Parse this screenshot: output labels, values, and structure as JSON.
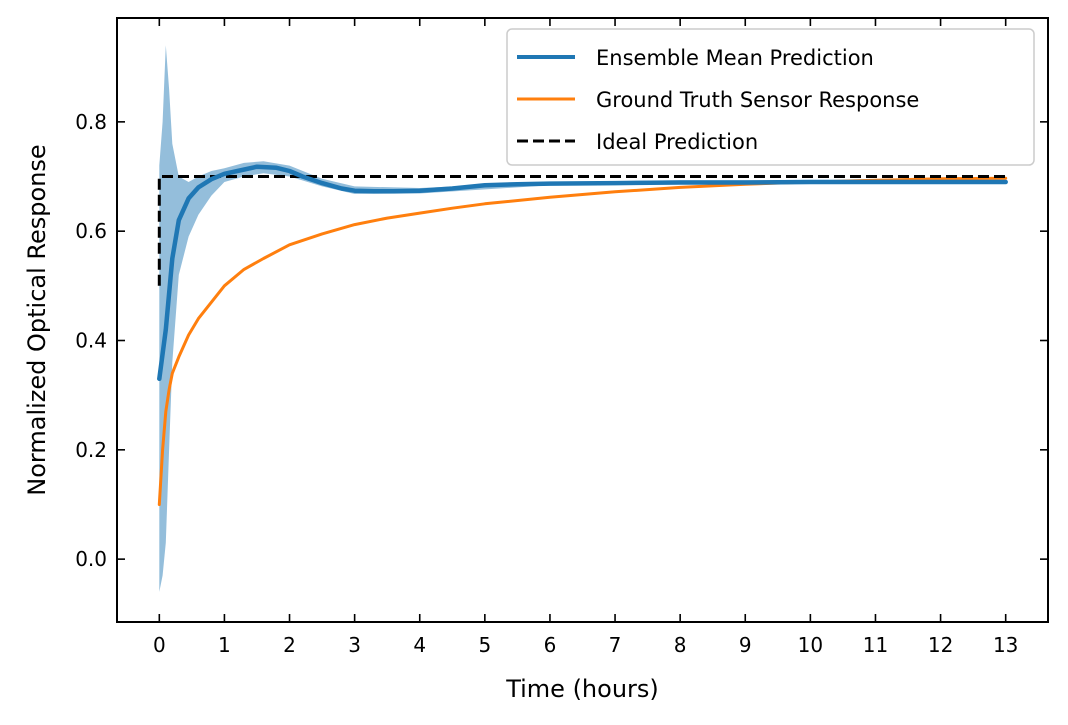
{
  "chart_data": {
    "type": "line",
    "xlabel": "Time (hours)",
    "ylabel": "Normalized Optical Response",
    "xlim": [
      -0.65,
      13.65
    ],
    "ylim": [
      -0.115,
      0.99
    ],
    "x_ticks": [
      0,
      1,
      2,
      3,
      4,
      5,
      6,
      7,
      8,
      9,
      10,
      11,
      12,
      13
    ],
    "y_ticks": [
      0.0,
      0.2,
      0.4,
      0.6,
      0.8
    ],
    "y_tick_labels": [
      "0.0",
      "0.2",
      "0.4",
      "0.6",
      "0.8"
    ],
    "grid": false,
    "legend_position": "top-right",
    "series": [
      {
        "name": "Ensemble Mean Prediction",
        "color": "#1f77b4",
        "style": "solid",
        "x": [
          0,
          0.1,
          0.2,
          0.3,
          0.45,
          0.6,
          0.8,
          1.0,
          1.2,
          1.5,
          1.8,
          2.0,
          2.2,
          2.5,
          2.8,
          3.0,
          3.3,
          3.6,
          4.0,
          4.5,
          5.0,
          5.5,
          6.0,
          7.0,
          8.0,
          9.0,
          10.0,
          11.0,
          12.0,
          13.0
        ],
        "y": [
          0.33,
          0.42,
          0.55,
          0.62,
          0.66,
          0.68,
          0.695,
          0.705,
          0.71,
          0.718,
          0.716,
          0.71,
          0.7,
          0.688,
          0.678,
          0.674,
          0.673,
          0.673,
          0.674,
          0.678,
          0.684,
          0.686,
          0.687,
          0.688,
          0.689,
          0.689,
          0.69,
          0.69,
          0.69,
          0.69
        ]
      },
      {
        "name": "Ground Truth Sensor Response",
        "color": "#ff7f0e",
        "style": "solid",
        "x": [
          0,
          0.05,
          0.1,
          0.15,
          0.2,
          0.3,
          0.45,
          0.6,
          0.8,
          1.0,
          1.3,
          1.6,
          2.0,
          2.5,
          3.0,
          3.5,
          4.0,
          4.5,
          5.0,
          6.0,
          7.0,
          8.0,
          9.0,
          10.0,
          11.0,
          12.0,
          13.0
        ],
        "y": [
          0.1,
          0.2,
          0.27,
          0.31,
          0.34,
          0.37,
          0.41,
          0.44,
          0.47,
          0.5,
          0.53,
          0.55,
          0.575,
          0.595,
          0.612,
          0.624,
          0.633,
          0.642,
          0.65,
          0.662,
          0.672,
          0.68,
          0.686,
          0.69,
          0.693,
          0.696,
          0.697
        ]
      },
      {
        "name": "Ideal Prediction",
        "color": "#000000",
        "style": "dashed",
        "x": [
          0,
          0,
          13
        ],
        "y": [
          0.5,
          0.7,
          0.7
        ]
      }
    ],
    "uncertainty_band": {
      "series": "Ensemble Mean Prediction",
      "color": "#1f77b4",
      "opacity": 0.48,
      "x": [
        0,
        0.05,
        0.1,
        0.15,
        0.2,
        0.3,
        0.45,
        0.6,
        0.8,
        1.0,
        1.3,
        1.6,
        2.0,
        2.5,
        3.0,
        4.0,
        6.0,
        8.0,
        10.0,
        13.0
      ],
      "upper": [
        0.72,
        0.8,
        0.94,
        0.86,
        0.76,
        0.7,
        0.69,
        0.7,
        0.71,
        0.715,
        0.725,
        0.728,
        0.72,
        0.696,
        0.682,
        0.679,
        0.69,
        0.693,
        0.693,
        0.694
      ],
      "lower": [
        -0.06,
        -0.03,
        0.03,
        0.2,
        0.36,
        0.52,
        0.59,
        0.63,
        0.665,
        0.69,
        0.7,
        0.706,
        0.7,
        0.682,
        0.668,
        0.669,
        0.684,
        0.686,
        0.687,
        0.687
      ]
    }
  }
}
